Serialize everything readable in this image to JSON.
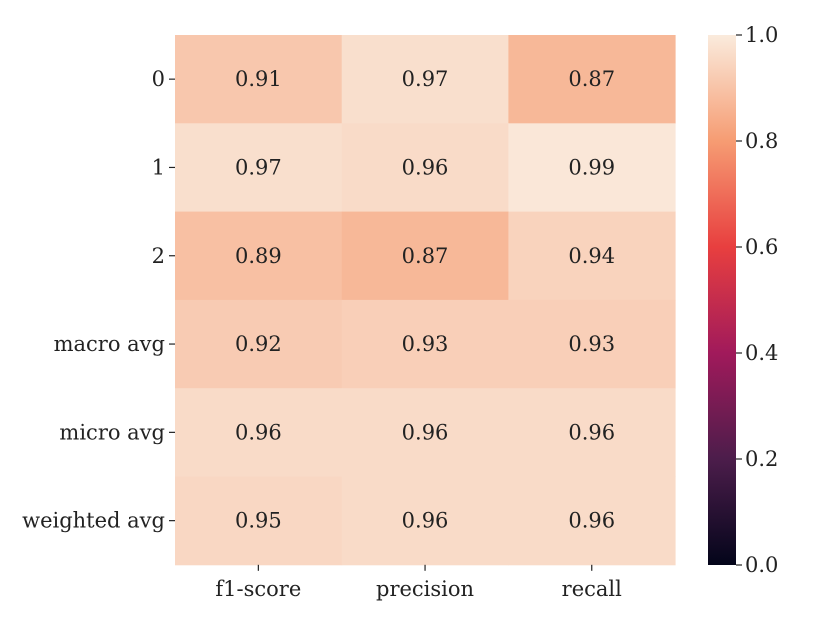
{
  "chart_data": {
    "type": "heatmap",
    "title": "",
    "xlabel": "",
    "ylabel": "",
    "columns": [
      "f1-score",
      "precision",
      "recall"
    ],
    "rows": [
      "0",
      "1",
      "2",
      "macro avg",
      "micro avg",
      "weighted avg"
    ],
    "values": [
      [
        0.91,
        0.97,
        0.87
      ],
      [
        0.97,
        0.96,
        0.99
      ],
      [
        0.89,
        0.87,
        0.94
      ],
      [
        0.92,
        0.93,
        0.93
      ],
      [
        0.96,
        0.96,
        0.96
      ],
      [
        0.95,
        0.96,
        0.96
      ]
    ],
    "value_labels": [
      [
        "0.91",
        "0.97",
        "0.87"
      ],
      [
        "0.97",
        "0.96",
        "0.99"
      ],
      [
        "0.89",
        "0.87",
        "0.94"
      ],
      [
        "0.92",
        "0.93",
        "0.93"
      ],
      [
        "0.96",
        "0.96",
        "0.96"
      ],
      [
        "0.95",
        "0.96",
        "0.96"
      ]
    ],
    "colorbar": {
      "range": [
        0.0,
        1.0
      ],
      "ticks": [
        0.0,
        0.2,
        0.4,
        0.6,
        0.8,
        1.0
      ],
      "tick_labels": [
        "0.0",
        "0.2",
        "0.4",
        "0.6",
        "0.8",
        "1.0"
      ],
      "colormap": "rocket",
      "colormap_stops": [
        "#03051a",
        "#4c1d4b",
        "#a11a5b",
        "#e83f3f",
        "#f69c73",
        "#faebdd"
      ]
    },
    "grid": false,
    "legend": "colorbar-right"
  }
}
